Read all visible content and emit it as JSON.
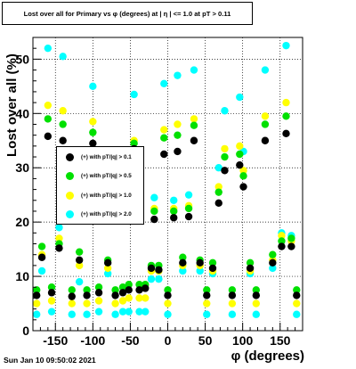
{
  "header": {
    "title": "Lost over all for Primary vs φ (degrees) at | η | <= 1.0 at pT > 0.11"
  },
  "footer": {
    "timestamp": "Sun Jan 10 09:50:02 2021"
  },
  "chart_data": {
    "type": "scatter",
    "title": "Lost over all for Primary vs φ (degrees) at | η | <= 1.0 at pT > 0.11",
    "xlabel": "φ (degrees)",
    "ylabel": "Lost over all (%)",
    "xlim": [
      -180,
      180
    ],
    "ylim": [
      0,
      54
    ],
    "x_ticks": [
      -150,
      -100,
      -50,
      0,
      50,
      100,
      150
    ],
    "y_ticks": [
      0,
      10,
      20,
      30,
      40,
      50
    ],
    "grid": true,
    "legend_position": "middle-left",
    "series": [
      {
        "name": "(+) with pT/|q| > 0.1",
        "color": "#000000",
        "x": [
          -175,
          -168,
          -160,
          -155,
          -145,
          -140,
          -128,
          -118,
          -108,
          -100,
          -92,
          -80,
          -70,
          -60,
          -52,
          -45,
          -38,
          -30,
          -22,
          -18,
          -12,
          -5,
          0,
          8,
          13,
          20,
          28,
          35,
          43,
          52,
          60,
          68,
          76,
          86,
          96,
          101,
          110,
          118,
          130,
          140,
          152,
          158,
          165,
          172
        ],
        "y": [
          6.5,
          13.5,
          35.8,
          7,
          15.2,
          35,
          6.3,
          13,
          6.5,
          34.5,
          7,
          12.5,
          6.5,
          7,
          7.5,
          33.5,
          7.5,
          7.8,
          11.5,
          20.5,
          11.2,
          32.5,
          6.5,
          20.8,
          33,
          12.5,
          21,
          35,
          12.5,
          6.5,
          11.5,
          23.5,
          29.5,
          6.5,
          30.5,
          26.5,
          11.5,
          6.5,
          35,
          12.5,
          15.5,
          36.3,
          15.5,
          6.5
        ]
      },
      {
        "name": "(+) with pT/|q| > 0.5",
        "color": "#00e000",
        "x": [
          -175,
          -168,
          -160,
          -155,
          -145,
          -140,
          -128,
          -118,
          -108,
          -100,
          -92,
          -80,
          -70,
          -60,
          -52,
          -45,
          -38,
          -30,
          -22,
          -18,
          -12,
          -5,
          0,
          8,
          13,
          20,
          28,
          35,
          43,
          52,
          60,
          68,
          76,
          86,
          96,
          101,
          110,
          118,
          130,
          140,
          152,
          158,
          165,
          172
        ],
        "y": [
          7.5,
          15.5,
          39,
          8,
          16,
          38,
          7.5,
          14.5,
          7.5,
          36.5,
          8,
          13,
          7.5,
          8,
          8.5,
          34.5,
          8.5,
          8.5,
          12,
          22,
          12,
          35.5,
          7.5,
          22,
          36,
          13.5,
          22.5,
          37.8,
          13,
          7.5,
          12.5,
          25.5,
          32,
          7.5,
          32.5,
          28.5,
          12.5,
          7.5,
          38,
          14,
          16.5,
          39.5,
          17,
          7.5
        ]
      },
      {
        "name": "(+) with pT/|q| > 1.0",
        "color": "#ffff00",
        "x": [
          -175,
          -168,
          -160,
          -155,
          -145,
          -140,
          -128,
          -118,
          -108,
          -100,
          -92,
          -80,
          -70,
          -60,
          -52,
          -45,
          -38,
          -30,
          -22,
          -18,
          -12,
          -5,
          0,
          8,
          13,
          20,
          28,
          35,
          43,
          52,
          60,
          68,
          76,
          86,
          96,
          101,
          110,
          118,
          130,
          140,
          152,
          158,
          165,
          172
        ],
        "y": [
          5,
          14,
          41.5,
          5.5,
          17,
          40.5,
          5,
          12,
          5,
          38.5,
          5.5,
          11.5,
          5,
          5.5,
          6,
          35,
          6,
          6,
          11,
          22.5,
          11,
          37,
          5,
          22.5,
          38,
          12,
          23,
          39,
          12,
          5,
          11,
          26.5,
          33.5,
          5,
          34,
          29.5,
          11,
          5,
          39.5,
          13,
          17.5,
          42,
          16.5,
          5
        ]
      },
      {
        "name": "(+) with pT/|q| > 2.0",
        "color": "#00ffff",
        "x": [
          -175,
          -168,
          -160,
          -155,
          -145,
          -140,
          -128,
          -118,
          -108,
          -100,
          -92,
          -80,
          -70,
          -60,
          -52,
          -45,
          -38,
          -30,
          -22,
          -18,
          -12,
          -5,
          0,
          8,
          13,
          20,
          28,
          35,
          43,
          52,
          60,
          68,
          76,
          86,
          96,
          101,
          110,
          118,
          130,
          140,
          152,
          158,
          165,
          172
        ],
        "y": [
          3,
          11,
          52,
          3.5,
          19,
          50.5,
          3,
          9,
          3,
          45,
          3.5,
          10.5,
          3,
          3.5,
          3.5,
          43.5,
          3.5,
          3.5,
          9.5,
          24.5,
          9.5,
          45.5,
          3,
          24,
          47,
          11,
          25,
          48,
          11,
          3,
          10.5,
          30,
          40.5,
          3,
          43,
          33,
          10.5,
          3,
          48,
          11.5,
          18,
          52.5,
          17.5,
          3
        ]
      }
    ]
  }
}
